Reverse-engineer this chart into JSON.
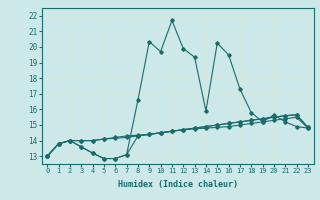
{
  "xlabel": "Humidex (Indice chaleur)",
  "ylabel": "",
  "background_color": "#cce8e8",
  "grid_color": "#ddf0f0",
  "line_color": "#1a6b6b",
  "xlim": [
    -0.5,
    23.5
  ],
  "ylim": [
    12.5,
    22.5
  ],
  "xticks": [
    0,
    1,
    2,
    3,
    4,
    5,
    6,
    7,
    8,
    9,
    10,
    11,
    12,
    13,
    14,
    15,
    16,
    17,
    18,
    19,
    20,
    21,
    22,
    23
  ],
  "yticks": [
    13,
    14,
    15,
    16,
    17,
    18,
    19,
    20,
    21,
    22
  ],
  "series": [
    [
      13.0,
      13.8,
      14.0,
      14.0,
      14.0,
      14.1,
      14.2,
      14.3,
      14.35,
      14.4,
      14.5,
      14.6,
      14.7,
      14.75,
      14.8,
      14.85,
      14.9,
      15.0,
      15.1,
      15.2,
      15.3,
      15.4,
      15.5,
      14.8
    ],
    [
      13.0,
      13.8,
      14.0,
      14.0,
      14.0,
      14.1,
      14.15,
      14.2,
      14.3,
      14.4,
      14.5,
      14.6,
      14.7,
      14.8,
      14.9,
      15.0,
      15.1,
      15.2,
      15.3,
      15.4,
      15.5,
      15.6,
      15.65,
      14.85
    ],
    [
      13.0,
      13.8,
      14.0,
      13.6,
      13.2,
      12.85,
      12.85,
      13.1,
      16.6,
      20.35,
      19.7,
      21.7,
      19.9,
      19.35,
      15.9,
      20.25,
      19.5,
      17.3,
      15.8,
      15.2,
      15.65,
      15.2,
      14.9,
      14.8
    ],
    [
      13.0,
      13.8,
      14.0,
      13.6,
      13.2,
      12.85,
      12.85,
      13.1,
      14.3,
      14.4,
      14.5,
      14.6,
      14.7,
      14.8,
      14.9,
      15.0,
      15.1,
      15.2,
      15.3,
      15.4,
      15.5,
      15.6,
      15.65,
      14.85
    ]
  ]
}
